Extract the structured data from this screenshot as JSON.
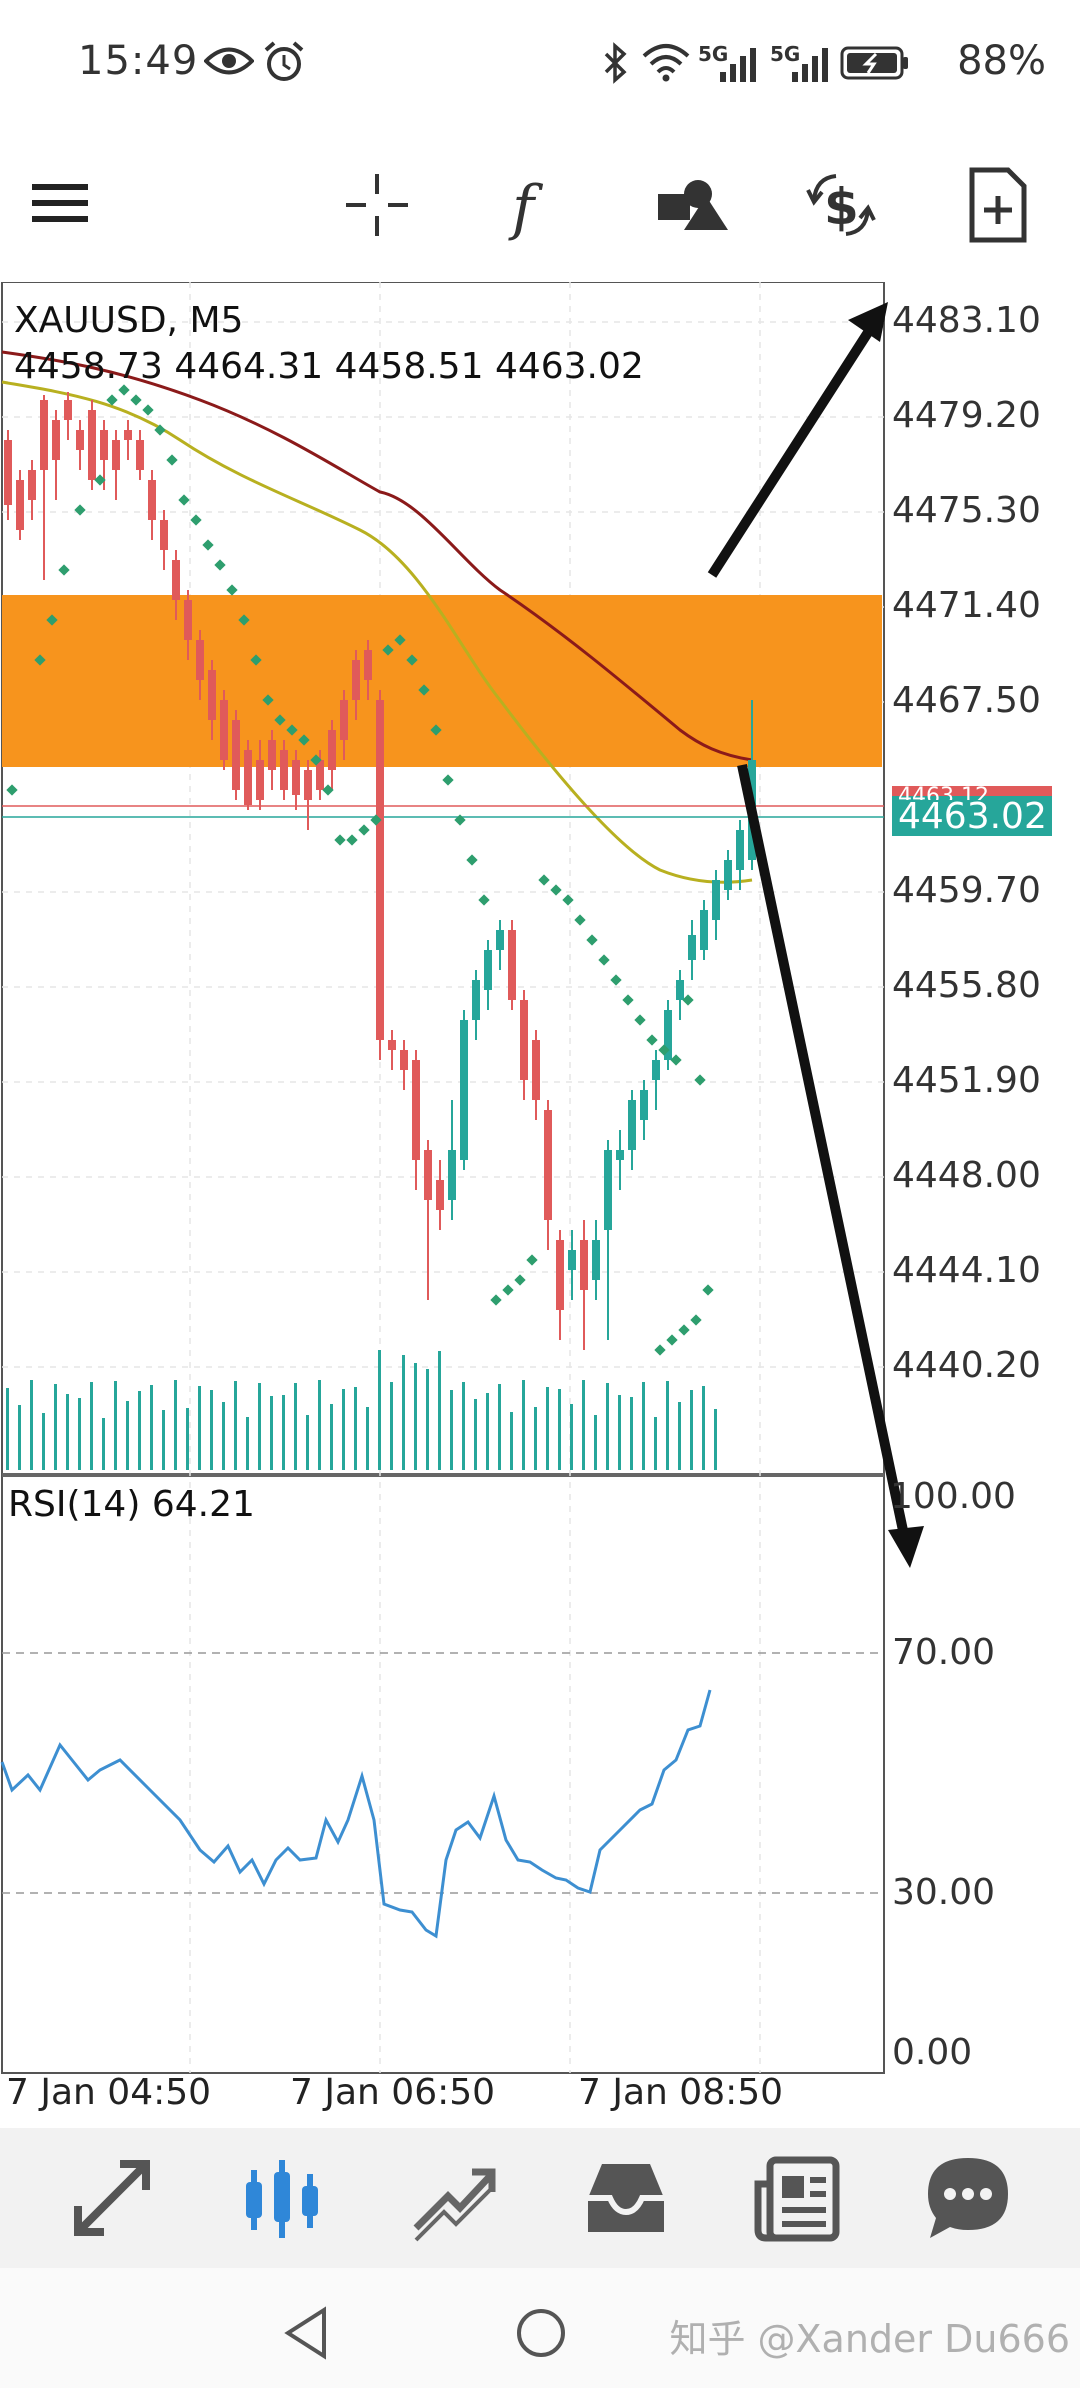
{
  "status_bar": {
    "time": "15:49",
    "battery": "88%",
    "network_1": "5G",
    "network_2": "5G"
  },
  "toolbar": {
    "icons": [
      "menu-icon",
      "crosshair-icon",
      "indicator-function-icon",
      "objects-icon",
      "trade-dollar-icon",
      "new-order-icon"
    ]
  },
  "chart": {
    "symbol": "XAUUSD, M5",
    "ohlc": "4458.73 4464.31 4458.51 4463.02",
    "current_price": "4463.02",
    "hidden_price_label": "4463.12",
    "price_labels": [
      "4483.10",
      "4479.20",
      "4475.30",
      "4471.40",
      "4467.50",
      "4459.70",
      "4455.80",
      "4451.90",
      "4448.00",
      "4444.10",
      "4440.20"
    ],
    "rsi_label": "RSI(14) 64.21",
    "rsi_levels": [
      "100.00",
      "70.00",
      "30.00",
      "0.00"
    ],
    "time_labels": [
      "7 Jan 04:50",
      "7 Jan 06:50",
      "7 Jan 08:50"
    ],
    "colors": {
      "bull": "#26a69a",
      "bear": "#e05a5a",
      "zone": "#f7941d",
      "ma_slow": "#8b1a1a",
      "ma_mid": "#b8b020",
      "sar": "#2e9e6e",
      "rsi": "#3d8fd1",
      "price_line": "#26a69a"
    }
  },
  "bottom_nav": {
    "items": [
      "quotes-icon",
      "chart-icon",
      "trade-icon",
      "history-icon",
      "news-icon",
      "messages-icon"
    ]
  },
  "watermark": "知乎 @Xander Du666"
}
